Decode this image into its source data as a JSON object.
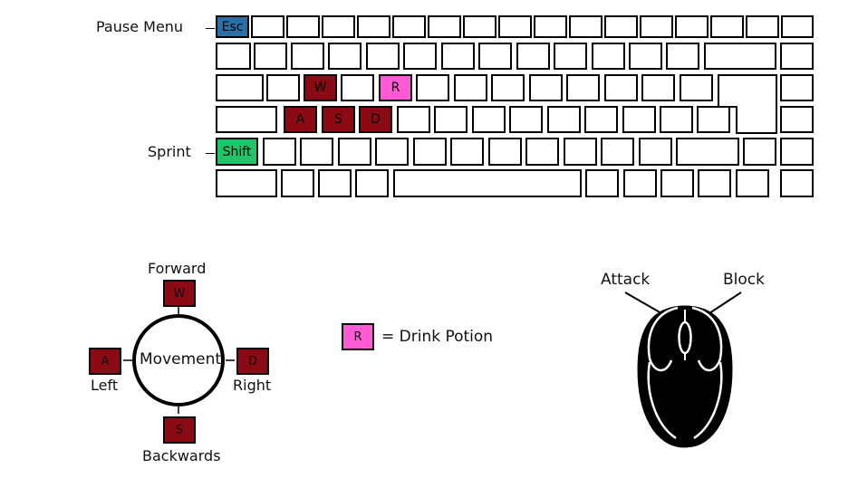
{
  "colors": {
    "movement": "#8b0a14",
    "potion": "#ff5ad6",
    "pause": "#2a6fa8",
    "sprint": "#22c46a"
  },
  "keyboard": {
    "esc": "Esc",
    "shift": "Shift",
    "w": "W",
    "a": "A",
    "s": "S",
    "d": "D",
    "r": "R"
  },
  "callouts": {
    "pause_menu": "Pause Menu",
    "sprint": "Sprint"
  },
  "movement_diagram": {
    "center": "Movement",
    "forward_label": "Forward",
    "forward_key": "W",
    "left_label": "Left",
    "left_key": "A",
    "right_label": "Right",
    "right_key": "D",
    "backwards_label": "Backwards",
    "backwards_key": "S"
  },
  "legend": {
    "key": "R",
    "text": "= Drink Potion"
  },
  "mouse": {
    "left_button_label": "Attack",
    "right_button_label": "Block"
  }
}
